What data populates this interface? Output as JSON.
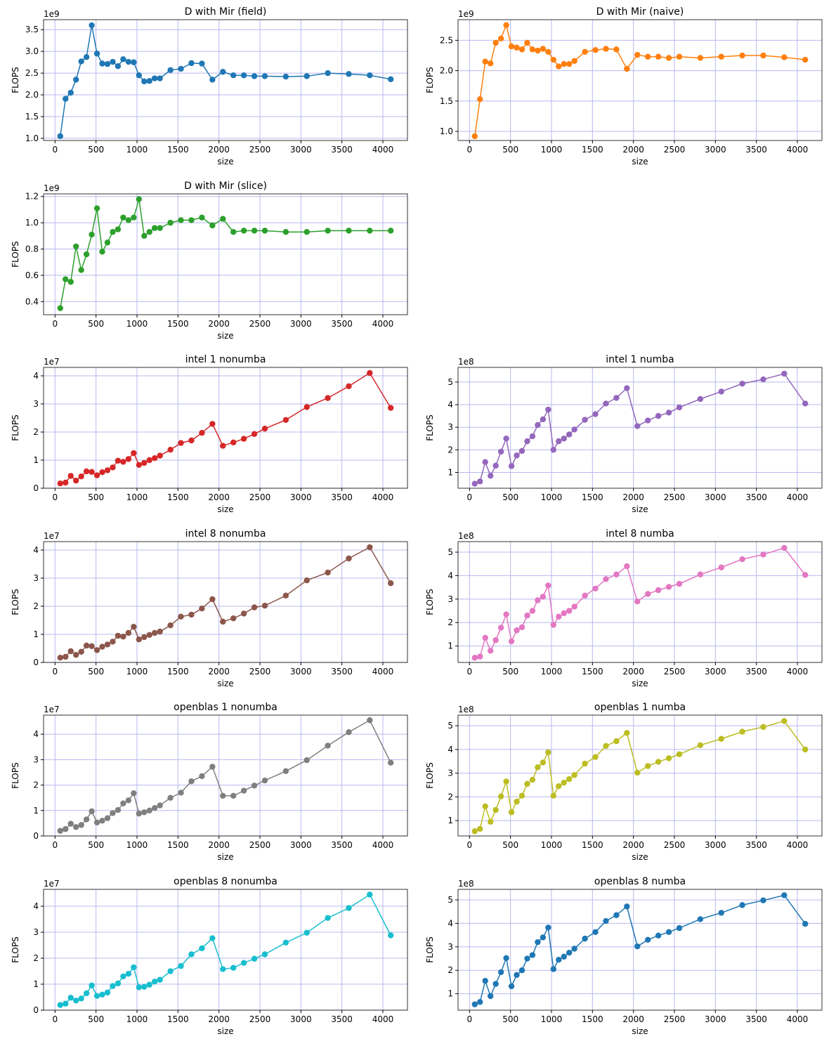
{
  "chart_data": [
    {
      "type": "line",
      "title": "D with Mir (field)",
      "xlabel": "size",
      "ylabel": "FLOPS",
      "offset": "1e9",
      "grid": true,
      "x": [
        64,
        128,
        192,
        256,
        320,
        384,
        448,
        512,
        576,
        640,
        704,
        768,
        832,
        896,
        960,
        1024,
        1088,
        1152,
        1216,
        1280,
        1408,
        1536,
        1664,
        1792,
        1920,
        2048,
        2176,
        2304,
        2432,
        2560,
        2816,
        3072,
        3328,
        3584,
        3840,
        4096
      ],
      "series": [
        {
          "color": "#1f77b4",
          "values": [
            1.05,
            1.91,
            2.05,
            2.35,
            2.77,
            2.87,
            3.6,
            2.95,
            2.72,
            2.71,
            2.76,
            2.66,
            2.82,
            2.76,
            2.75,
            2.45,
            2.31,
            2.32,
            2.38,
            2.38,
            2.57,
            2.6,
            2.73,
            2.72,
            2.35,
            2.53,
            2.45,
            2.45,
            2.43,
            2.43,
            2.42,
            2.43,
            2.5,
            2.48,
            2.45,
            2.36
          ]
        }
      ],
      "xlim": [
        -140,
        4300
      ],
      "xticks": [
        0,
        500,
        1000,
        1500,
        2000,
        2500,
        3000,
        3500,
        4000
      ],
      "ylim": [
        0.95,
        3.73
      ],
      "yticks": [
        {
          "value": 1,
          "label": "1.0"
        },
        1.5,
        {
          "value": 2,
          "label": "2.0"
        },
        2.5,
        {
          "value": 3,
          "label": "3.0"
        },
        3.5
      ]
    },
    {
      "type": "line",
      "title": "D with Mir (naive)",
      "xlabel": "size",
      "ylabel": "FLOPS",
      "offset": "1e9",
      "grid": true,
      "x": [
        64,
        128,
        192,
        256,
        320,
        384,
        448,
        512,
        576,
        640,
        704,
        768,
        832,
        896,
        960,
        1024,
        1088,
        1152,
        1216,
        1280,
        1408,
        1536,
        1664,
        1792,
        1920,
        2048,
        2176,
        2304,
        2432,
        2560,
        2816,
        3072,
        3328,
        3584,
        3840,
        4096
      ],
      "series": [
        {
          "color": "#ff7f0e",
          "values": [
            0.92,
            1.53,
            2.15,
            2.12,
            2.46,
            2.53,
            2.75,
            2.4,
            2.38,
            2.35,
            2.46,
            2.35,
            2.33,
            2.36,
            2.31,
            2.18,
            2.07,
            2.11,
            2.11,
            2.16,
            2.31,
            2.34,
            2.36,
            2.35,
            2.03,
            2.26,
            2.23,
            2.23,
            2.21,
            2.23,
            2.21,
            2.23,
            2.25,
            2.25,
            2.22,
            2.18
          ]
        }
      ],
      "xlim": [
        -140,
        4300
      ],
      "xticks": [
        0,
        500,
        1000,
        1500,
        2000,
        2500,
        3000,
        3500,
        4000
      ],
      "ylim": [
        0.85,
        2.84
      ],
      "yticks": [
        {
          "value": 1,
          "label": "1.0"
        },
        1.5,
        {
          "value": 2,
          "label": "2.0"
        },
        2.5
      ]
    },
    {
      "type": "line",
      "title": "D with Mir (slice)",
      "xlabel": "size",
      "ylabel": "FLOPS",
      "offset": "1e9",
      "grid": true,
      "x": [
        64,
        128,
        192,
        256,
        320,
        384,
        448,
        512,
        576,
        640,
        704,
        768,
        832,
        896,
        960,
        1024,
        1088,
        1152,
        1216,
        1280,
        1408,
        1536,
        1664,
        1792,
        1920,
        2048,
        2176,
        2304,
        2432,
        2560,
        2816,
        3072,
        3328,
        3584,
        3840,
        4096
      ],
      "series": [
        {
          "color": "#2ca02c",
          "values": [
            0.35,
            0.57,
            0.55,
            0.82,
            0.64,
            0.76,
            0.91,
            1.11,
            0.78,
            0.85,
            0.93,
            0.95,
            1.04,
            1.02,
            1.04,
            1.18,
            0.9,
            0.93,
            0.96,
            0.96,
            1.0,
            1.02,
            1.02,
            1.04,
            0.98,
            1.03,
            0.93,
            0.94,
            0.94,
            0.94,
            0.93,
            0.93,
            0.94,
            0.94,
            0.94,
            0.94
          ]
        }
      ],
      "xlim": [
        -140,
        4300
      ],
      "xticks": [
        0,
        500,
        1000,
        1500,
        2000,
        2500,
        3000,
        3500,
        4000
      ],
      "ylim": [
        0.3,
        1.22
      ],
      "yticks": [
        0.4,
        0.6,
        0.8,
        {
          "value": 1,
          "label": "1.0"
        },
        1.2
      ]
    },
    {
      "type": "line",
      "title": "intel 1 nonumba",
      "xlabel": "size",
      "ylabel": "FLOPS",
      "offset": "1e7",
      "grid": true,
      "x": [
        64,
        128,
        192,
        256,
        320,
        384,
        448,
        512,
        576,
        640,
        704,
        768,
        832,
        896,
        960,
        1024,
        1088,
        1152,
        1216,
        1280,
        1408,
        1536,
        1664,
        1792,
        1920,
        2048,
        2176,
        2304,
        2432,
        2560,
        2816,
        3072,
        3328,
        3584,
        3840,
        4096
      ],
      "series": [
        {
          "color": "#d62728",
          "values": [
            0.17,
            0.2,
            0.44,
            0.27,
            0.42,
            0.6,
            0.58,
            0.46,
            0.57,
            0.64,
            0.74,
            0.98,
            0.94,
            1.04,
            1.25,
            0.83,
            0.9,
            1.0,
            1.07,
            1.16,
            1.37,
            1.61,
            1.7,
            1.97,
            2.29,
            1.51,
            1.63,
            1.76,
            1.93,
            2.12,
            2.43,
            2.89,
            3.21,
            3.63,
            4.1,
            2.86
          ]
        }
      ],
      "xlim": [
        -140,
        4300
      ],
      "xticks": [
        0,
        500,
        1000,
        1500,
        2000,
        2500,
        3000,
        3500,
        4000
      ],
      "ylim": [
        0,
        4.3
      ],
      "yticks": [
        0,
        1,
        2,
        3,
        4
      ]
    },
    {
      "type": "line",
      "title": "intel 1 numba",
      "xlabel": "size",
      "ylabel": "FLOPS",
      "offset": "1e8",
      "grid": true,
      "x": [
        64,
        128,
        192,
        256,
        320,
        384,
        448,
        512,
        576,
        640,
        704,
        768,
        832,
        896,
        960,
        1024,
        1088,
        1152,
        1216,
        1280,
        1408,
        1536,
        1664,
        1792,
        1920,
        2048,
        2176,
        2304,
        2432,
        2560,
        2816,
        3072,
        3328,
        3584,
        3840,
        4096
      ],
      "series": [
        {
          "color": "#9467bd",
          "values": [
            0.5,
            0.6,
            1.46,
            0.85,
            1.3,
            1.92,
            2.5,
            1.28,
            1.75,
            1.95,
            2.38,
            2.6,
            3.1,
            3.35,
            3.78,
            2.0,
            2.38,
            2.5,
            2.68,
            2.9,
            3.33,
            3.58,
            4.05,
            4.3,
            4.73,
            3.05,
            3.3,
            3.5,
            3.65,
            3.88,
            4.25,
            4.58,
            4.93,
            5.12,
            5.37,
            4.05
          ]
        }
      ],
      "xlim": [
        -140,
        4300
      ],
      "xticks": [
        0,
        500,
        1000,
        1500,
        2000,
        2500,
        3000,
        3500,
        4000
      ],
      "ylim": [
        0.3,
        5.65
      ],
      "yticks": [
        1,
        2,
        3,
        4,
        5
      ]
    },
    {
      "type": "line",
      "title": "intel 8 nonumba",
      "xlabel": "size",
      "ylabel": "FLOPS",
      "offset": "1e7",
      "grid": true,
      "x": [
        64,
        128,
        192,
        256,
        320,
        384,
        448,
        512,
        576,
        640,
        704,
        768,
        832,
        896,
        960,
        1024,
        1088,
        1152,
        1216,
        1280,
        1408,
        1536,
        1664,
        1792,
        1920,
        2048,
        2176,
        2304,
        2432,
        2560,
        2816,
        3072,
        3328,
        3584,
        3840,
        4096
      ],
      "series": [
        {
          "color": "#8c564b",
          "values": [
            0.17,
            0.2,
            0.4,
            0.27,
            0.38,
            0.6,
            0.58,
            0.44,
            0.56,
            0.64,
            0.74,
            0.95,
            0.92,
            1.05,
            1.27,
            0.82,
            0.9,
            0.98,
            1.05,
            1.1,
            1.32,
            1.63,
            1.7,
            1.92,
            2.25,
            1.45,
            1.57,
            1.74,
            1.96,
            2.02,
            2.38,
            2.92,
            3.2,
            3.7,
            4.1,
            2.82
          ]
        }
      ],
      "xlim": [
        -140,
        4300
      ],
      "xticks": [
        0,
        500,
        1000,
        1500,
        2000,
        2500,
        3000,
        3500,
        4000
      ],
      "ylim": [
        0,
        4.3
      ],
      "yticks": [
        0,
        1,
        2,
        3,
        4
      ]
    },
    {
      "type": "line",
      "title": "intel 8 numba",
      "xlabel": "size",
      "ylabel": "FLOPS",
      "offset": "1e8",
      "grid": true,
      "x": [
        64,
        128,
        192,
        256,
        320,
        384,
        448,
        512,
        576,
        640,
        704,
        768,
        832,
        896,
        960,
        1024,
        1088,
        1152,
        1216,
        1280,
        1408,
        1536,
        1664,
        1792,
        1920,
        2048,
        2176,
        2304,
        2432,
        2560,
        2816,
        3072,
        3328,
        3584,
        3840,
        4096
      ],
      "series": [
        {
          "color": "#e377c2",
          "values": [
            0.5,
            0.55,
            1.35,
            0.8,
            1.25,
            1.78,
            2.35,
            1.2,
            1.67,
            1.8,
            2.3,
            2.5,
            2.95,
            3.1,
            3.58,
            1.9,
            2.25,
            2.4,
            2.5,
            2.68,
            3.15,
            3.45,
            3.85,
            4.05,
            4.4,
            2.9,
            3.22,
            3.38,
            3.52,
            3.65,
            4.05,
            4.35,
            4.7,
            4.9,
            5.18,
            4.03
          ]
        }
      ],
      "xlim": [
        -140,
        4300
      ],
      "xticks": [
        0,
        500,
        1000,
        1500,
        2000,
        2500,
        3000,
        3500,
        4000
      ],
      "ylim": [
        0.3,
        5.45
      ],
      "yticks": [
        1,
        2,
        3,
        4,
        5
      ]
    },
    {
      "type": "line",
      "title": "openblas 1 nonumba",
      "xlabel": "size",
      "ylabel": "FLOPS",
      "offset": "1e7",
      "grid": true,
      "x": [
        64,
        128,
        192,
        256,
        320,
        384,
        448,
        512,
        576,
        640,
        704,
        768,
        832,
        896,
        960,
        1024,
        1088,
        1152,
        1216,
        1280,
        1408,
        1536,
        1664,
        1792,
        1920,
        2048,
        2176,
        2304,
        2432,
        2560,
        2816,
        3072,
        3328,
        3584,
        3840,
        4096
      ],
      "series": [
        {
          "color": "#7f7f7f",
          "values": [
            0.2,
            0.27,
            0.48,
            0.35,
            0.43,
            0.65,
            0.97,
            0.53,
            0.6,
            0.7,
            0.9,
            1.02,
            1.28,
            1.4,
            1.68,
            0.88,
            0.93,
            1.0,
            1.1,
            1.2,
            1.5,
            1.7,
            2.15,
            2.35,
            2.72,
            1.58,
            1.58,
            1.78,
            1.98,
            2.18,
            2.55,
            2.98,
            3.55,
            4.08,
            4.55,
            2.88
          ]
        }
      ],
      "xlim": [
        -140,
        4300
      ],
      "xticks": [
        0,
        500,
        1000,
        1500,
        2000,
        2500,
        3000,
        3500,
        4000
      ],
      "ylim": [
        0,
        4.75
      ],
      "yticks": [
        0,
        1,
        2,
        3,
        4
      ]
    },
    {
      "type": "line",
      "title": "openblas 1 numba",
      "xlabel": "size",
      "ylabel": "FLOPS",
      "offset": "1e8",
      "grid": true,
      "x": [
        64,
        128,
        192,
        256,
        320,
        384,
        448,
        512,
        576,
        640,
        704,
        768,
        832,
        896,
        960,
        1024,
        1088,
        1152,
        1216,
        1280,
        1408,
        1536,
        1664,
        1792,
        1920,
        2048,
        2176,
        2304,
        2432,
        2560,
        2816,
        3072,
        3328,
        3584,
        3840,
        4096
      ],
      "series": [
        {
          "color": "#bcbd22",
          "values": [
            0.55,
            0.65,
            1.6,
            0.95,
            1.45,
            2.02,
            2.65,
            1.35,
            1.8,
            2.05,
            2.55,
            2.72,
            3.25,
            3.45,
            3.88,
            2.05,
            2.45,
            2.6,
            2.75,
            2.92,
            3.4,
            3.68,
            4.15,
            4.35,
            4.7,
            3.02,
            3.3,
            3.48,
            3.63,
            3.8,
            4.18,
            4.45,
            4.75,
            4.95,
            5.2,
            4.0
          ]
        }
      ],
      "xlim": [
        -140,
        4300
      ],
      "xticks": [
        0,
        500,
        1000,
        1500,
        2000,
        2500,
        3000,
        3500,
        4000
      ],
      "ylim": [
        0.35,
        5.45
      ],
      "yticks": [
        1,
        2,
        3,
        4,
        5
      ]
    },
    {
      "type": "line",
      "title": "openblas 8 nonumba",
      "xlabel": "size",
      "ylabel": "FLOPS",
      "offset": "1e7",
      "grid": true,
      "x": [
        64,
        128,
        192,
        256,
        320,
        384,
        448,
        512,
        576,
        640,
        704,
        768,
        832,
        896,
        960,
        1024,
        1088,
        1152,
        1216,
        1280,
        1408,
        1536,
        1664,
        1792,
        1920,
        2048,
        2176,
        2304,
        2432,
        2560,
        2816,
        3072,
        3328,
        3584,
        3840,
        4096
      ],
      "series": [
        {
          "color": "#17becf",
          "values": [
            0.2,
            0.25,
            0.48,
            0.37,
            0.45,
            0.65,
            0.95,
            0.55,
            0.6,
            0.68,
            0.93,
            1.03,
            1.3,
            1.4,
            1.65,
            0.88,
            0.9,
            0.98,
            1.1,
            1.17,
            1.5,
            1.7,
            2.15,
            2.38,
            2.77,
            1.58,
            1.63,
            1.82,
            1.98,
            2.15,
            2.6,
            2.98,
            3.55,
            3.93,
            4.45,
            2.88
          ]
        }
      ],
      "xlim": [
        -140,
        4300
      ],
      "xticks": [
        0,
        500,
        1000,
        1500,
        2000,
        2500,
        3000,
        3500,
        4000
      ],
      "ylim": [
        0,
        4.65
      ],
      "yticks": [
        0,
        1,
        2,
        3,
        4
      ]
    },
    {
      "type": "line",
      "title": "openblas 8 numba",
      "xlabel": "size",
      "ylabel": "FLOPS",
      "offset": "1e8",
      "grid": true,
      "x": [
        64,
        128,
        192,
        256,
        320,
        384,
        448,
        512,
        576,
        640,
        704,
        768,
        832,
        896,
        960,
        1024,
        1088,
        1152,
        1216,
        1280,
        1408,
        1536,
        1664,
        1792,
        1920,
        2048,
        2176,
        2304,
        2432,
        2560,
        2816,
        3072,
        3328,
        3584,
        3840,
        4096
      ],
      "series": [
        {
          "color": "#1f77b4",
          "values": [
            0.55,
            0.65,
            1.55,
            0.9,
            1.42,
            1.92,
            2.52,
            1.32,
            1.8,
            2.0,
            2.5,
            2.65,
            3.2,
            3.4,
            3.82,
            2.05,
            2.45,
            2.58,
            2.75,
            2.92,
            3.35,
            3.63,
            4.1,
            4.35,
            4.72,
            3.02,
            3.3,
            3.48,
            3.63,
            3.8,
            4.18,
            4.45,
            4.78,
            4.98,
            5.2,
            3.98
          ]
        }
      ],
      "xlim": [
        -140,
        4300
      ],
      "xticks": [
        0,
        500,
        1000,
        1500,
        2000,
        2500,
        3000,
        3500,
        4000
      ],
      "ylim": [
        0.3,
        5.45
      ],
      "yticks": [
        1,
        2,
        3,
        4,
        5
      ]
    }
  ]
}
